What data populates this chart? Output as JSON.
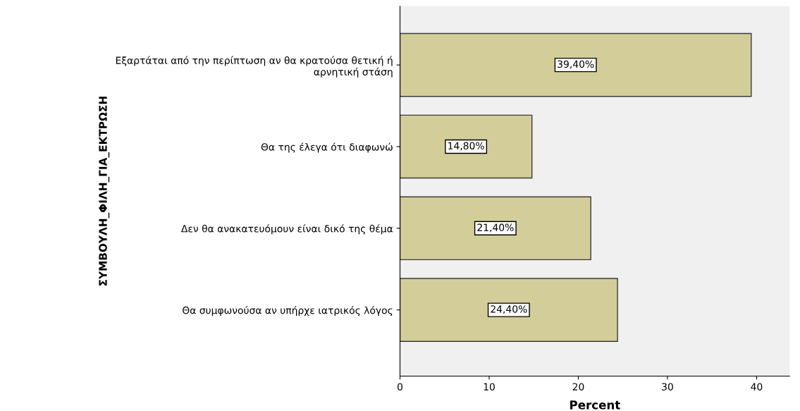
{
  "chart_data": {
    "type": "bar",
    "orientation": "horizontal",
    "categories": [
      "Εξαρτάται από την περίπτωση αν θα κρατούσα θετική ή\nαρνητική στάση",
      "Θα της έλεγα ότι διαφωνώ",
      "Δεν θα ανακατευόμουν είναι δικό της θέμα",
      "Θα συμφωνούσα αν υπήρχε ιατρικός λόγος"
    ],
    "values": [
      39.4,
      14.8,
      21.4,
      24.4
    ],
    "value_labels": [
      "39,40%",
      "14,80%",
      "21,40%",
      "24,40%"
    ],
    "color": "#d3ce99",
    "xlim": [
      0,
      43.7
    ],
    "xticks": [
      0,
      10,
      20,
      30,
      40
    ],
    "xlabel": "Percent",
    "ylabel": "ΣΥΜΒΟΥΛΗ_ΦΙΛΗ_ΓΙΑ_ΕΚΤΡΩΣΗ",
    "grid": false,
    "legend": false
  }
}
